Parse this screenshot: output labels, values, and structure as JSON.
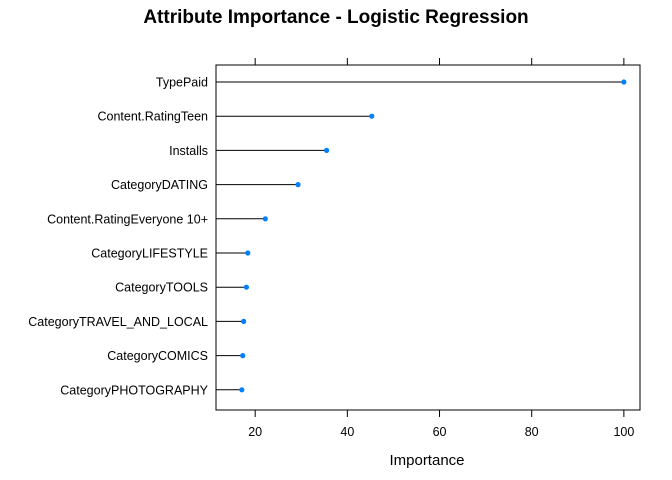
{
  "chart_data": {
    "type": "dot",
    "title": "Attribute Importance - Logistic Regression",
    "xlabel": "Importance",
    "ylabel": "",
    "xlim": [
      11.5,
      103.5
    ],
    "xticks": [
      20,
      40,
      60,
      80,
      100
    ],
    "grid": false,
    "legend": "none",
    "categories": [
      "TypePaid",
      "Content.RatingTeen",
      "Installs",
      "CategoryDATING",
      "Content.RatingEveryone 10+",
      "CategoryLIFESTYLE",
      "CategoryTOOLS",
      "CategoryTRAVEL_AND_LOCAL",
      "CategoryCOMICS",
      "CategoryPHOTOGRAPHY"
    ],
    "values": [
      100,
      45.3,
      35.5,
      29.3,
      22.2,
      18.4,
      18.1,
      17.5,
      17.3,
      17.1
    ],
    "colors": {
      "point": "#0080ff",
      "line": "#000000",
      "frame": "#000000"
    }
  }
}
